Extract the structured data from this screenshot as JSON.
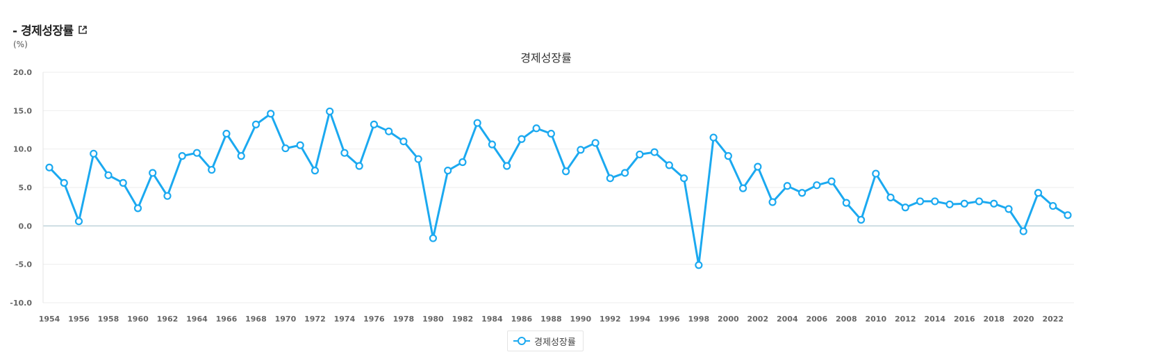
{
  "header": {
    "title": "- 경제성장률",
    "unit": "(%)",
    "link_icon": "external-link-icon"
  },
  "colors": {
    "series": "#1ba9f0",
    "zero_line": "#a9c6cf",
    "grid": "#eeeeee",
    "axis": "#e3e3e3"
  },
  "chart_data": {
    "type": "line",
    "title": "경제성장률",
    "xlabel": "",
    "ylabel": "(%)",
    "ylim": [
      -10,
      20
    ],
    "xlim": [
      1954,
      2023
    ],
    "yticks": [
      "20.0",
      "15.0",
      "10.0",
      "5.0",
      "0.0",
      "-5.0",
      "-10.0"
    ],
    "xticks": [
      "1954",
      "1956",
      "1958",
      "1960",
      "1962",
      "1964",
      "1966",
      "1968",
      "1970",
      "1972",
      "1974",
      "1976",
      "1978",
      "1980",
      "1982",
      "1984",
      "1986",
      "1988",
      "1990",
      "1992",
      "1994",
      "1996",
      "1998",
      "2000",
      "2002",
      "2004",
      "2006",
      "2008",
      "2010",
      "2012",
      "2014",
      "2016",
      "2018",
      "2020",
      "2022"
    ],
    "grid": true,
    "legend": "bottom-center",
    "series": [
      {
        "name": "경제성장률",
        "x": [
          1954,
          1955,
          1956,
          1957,
          1958,
          1959,
          1960,
          1961,
          1962,
          1963,
          1964,
          1965,
          1966,
          1967,
          1968,
          1969,
          1970,
          1971,
          1972,
          1973,
          1974,
          1975,
          1976,
          1977,
          1978,
          1979,
          1980,
          1981,
          1982,
          1983,
          1984,
          1985,
          1986,
          1987,
          1988,
          1989,
          1990,
          1991,
          1992,
          1993,
          1994,
          1995,
          1996,
          1997,
          1998,
          1999,
          2000,
          2001,
          2002,
          2003,
          2004,
          2005,
          2006,
          2007,
          2008,
          2009,
          2010,
          2011,
          2012,
          2013,
          2014,
          2015,
          2016,
          2017,
          2018,
          2019,
          2020,
          2021,
          2022,
          2023
        ],
        "values": [
          7.6,
          5.6,
          0.6,
          9.4,
          6.6,
          5.6,
          2.3,
          6.9,
          3.9,
          9.1,
          9.5,
          7.3,
          12.0,
          9.1,
          13.2,
          14.6,
          10.1,
          10.5,
          7.2,
          14.9,
          9.5,
          7.8,
          13.2,
          12.3,
          11.0,
          8.7,
          -1.6,
          7.2,
          8.3,
          13.4,
          10.6,
          7.8,
          11.3,
          12.7,
          12.0,
          7.1,
          9.9,
          10.8,
          6.2,
          6.9,
          9.3,
          9.6,
          7.9,
          6.2,
          -5.1,
          11.5,
          9.1,
          4.9,
          7.7,
          3.1,
          5.2,
          4.3,
          5.3,
          5.8,
          3.0,
          0.8,
          6.8,
          3.7,
          2.4,
          3.2,
          3.2,
          2.8,
          2.9,
          3.2,
          2.9,
          2.2,
          -0.7,
          4.3,
          2.6,
          1.4
        ]
      }
    ]
  }
}
